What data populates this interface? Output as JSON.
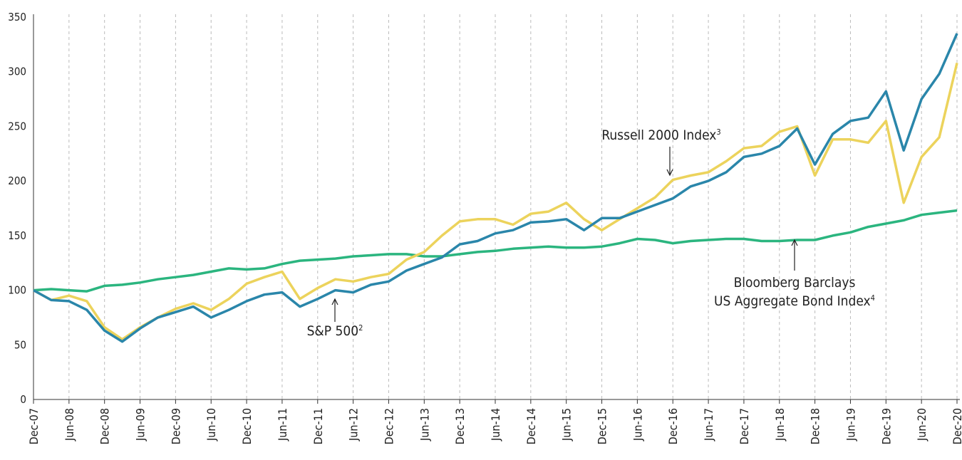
{
  "chart_data": {
    "type": "line",
    "categories": [
      "Dec-07",
      null,
      "Jun-08",
      null,
      "Dec-08",
      null,
      "Jun-09",
      null,
      "Dec-09",
      null,
      "Jun-10",
      null,
      "Dec-10",
      null,
      "Jun-11",
      null,
      "Dec-11",
      null,
      "Jun-12",
      null,
      "Dec-12",
      null,
      "Jun-13",
      null,
      "Dec-13",
      null,
      "Jun-14",
      null,
      "Dec-14",
      null,
      "Jun-15",
      null,
      "Dec-15",
      null,
      "Jun-16",
      null,
      "Dec-16",
      null,
      "Jun-17",
      null,
      "Dec-17",
      null,
      "Jun-18",
      null,
      "Dec-18",
      null,
      "Jun-19",
      null,
      "Dec-19",
      null,
      "Jun-20",
      null,
      "Dec-20"
    ],
    "series": [
      {
        "color": "#2bb57f",
        "values": [
          100,
          101,
          100,
          99,
          104,
          105,
          107,
          110,
          112,
          114,
          117,
          120,
          119,
          120,
          124,
          127,
          128,
          129,
          131,
          132,
          133,
          133,
          131,
          131,
          133,
          135,
          136,
          138,
          139,
          140,
          139,
          139,
          140,
          143,
          147,
          146,
          143,
          145,
          146,
          147,
          147,
          145,
          145,
          146,
          146,
          150,
          153,
          158,
          161,
          164,
          169,
          171,
          173
        ]
      },
      {
        "color": "#ecd35c",
        "values": [
          100,
          91,
          95,
          90,
          66,
          55,
          66,
          75,
          83,
          88,
          82,
          92,
          106,
          112,
          117,
          92,
          102,
          110,
          108,
          112,
          115,
          128,
          135,
          150,
          163,
          165,
          165,
          160,
          170,
          172,
          180,
          165,
          155,
          165,
          175,
          185,
          201,
          205,
          208,
          218,
          230,
          232,
          245,
          250,
          205,
          238,
          238,
          235,
          255,
          180,
          222,
          240,
          308
        ]
      },
      {
        "color": "#2a86aa",
        "values": [
          100,
          91,
          90,
          82,
          63,
          53,
          65,
          75,
          80,
          85,
          75,
          82,
          90,
          96,
          98,
          85,
          92,
          100,
          98,
          105,
          108,
          118,
          124,
          130,
          142,
          145,
          152,
          155,
          162,
          163,
          165,
          155,
          166,
          166,
          172,
          178,
          184,
          195,
          200,
          208,
          222,
          225,
          232,
          248,
          215,
          243,
          255,
          258,
          282,
          228,
          275,
          298,
          335
        ]
      }
    ],
    "annotations": [
      {
        "lines": [
          "Russell 2000 Index"
        ],
        "sup": "3"
      },
      {
        "lines": [
          "S&P 500"
        ],
        "sup": "2"
      },
      {
        "lines": [
          "Bloomberg Barclays",
          "US Aggregate Bond Index"
        ],
        "sup": "4"
      }
    ],
    "ylim": [
      0,
      350
    ],
    "yticks": [
      0,
      50,
      100,
      150,
      200,
      250,
      300,
      350
    ],
    "grid": true
  }
}
